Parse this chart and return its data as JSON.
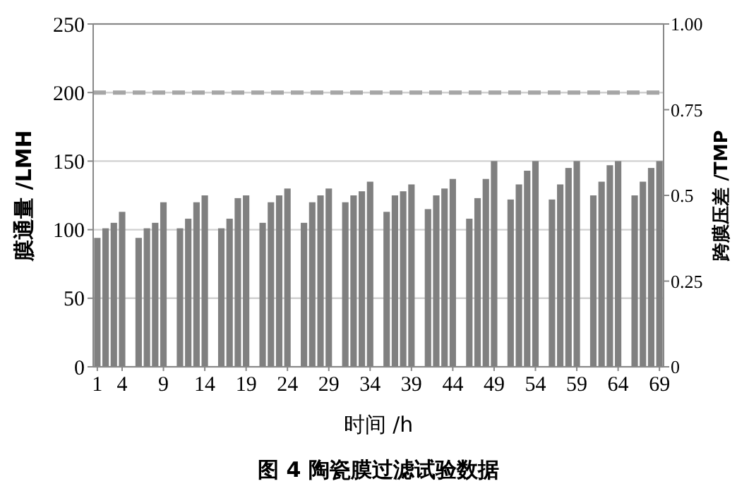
{
  "chart_data": {
    "type": "bar",
    "title": "图 4  陶瓷膜过滤试验数据",
    "xlabel": "时间 /h",
    "ylabel": "膜通量 /LMH",
    "y2label": "跨膜压差 /TMP",
    "x": [
      1,
      2,
      3,
      4,
      6,
      7,
      8,
      9,
      11,
      12,
      13,
      14,
      16,
      17,
      18,
      19,
      21,
      22,
      23,
      24,
      26,
      27,
      28,
      29,
      31,
      32,
      33,
      34,
      36,
      37,
      38,
      39,
      41,
      42,
      43,
      44,
      46,
      47,
      48,
      49,
      51,
      52,
      53,
      54,
      56,
      57,
      58,
      59,
      61,
      62,
      63,
      64,
      66,
      67,
      68,
      69
    ],
    "values": [
      94,
      101,
      105,
      113,
      94,
      101,
      105,
      120,
      101,
      108,
      120,
      125,
      101,
      108,
      123,
      125,
      105,
      120,
      125,
      130,
      105,
      120,
      125,
      130,
      120,
      125,
      128,
      135,
      113,
      125,
      128,
      133,
      115,
      125,
      130,
      137,
      108,
      123,
      137,
      150,
      122,
      133,
      143,
      150,
      122,
      133,
      145,
      150,
      125,
      135,
      147,
      150,
      125,
      135,
      145,
      150
    ],
    "color": "#808080",
    "xlim": [
      0.5,
      69.5
    ],
    "xticks": [
      1,
      4,
      9,
      14,
      19,
      24,
      29,
      34,
      39,
      44,
      49,
      54,
      59,
      64,
      69
    ],
    "ylim": [
      0,
      250
    ],
    "yticks": [
      0,
      50,
      100,
      150,
      200,
      250
    ],
    "y2lim": [
      0,
      1
    ],
    "y2ticks": [
      0,
      0.25,
      0.5,
      0.75,
      {
        "value": 1,
        "label": "1.00"
      }
    ],
    "ref_lines": [
      {
        "axis": "y2",
        "value": 0.8,
        "color": "#a6a6a6",
        "line_style": "dashed"
      }
    ],
    "grid": "y"
  }
}
